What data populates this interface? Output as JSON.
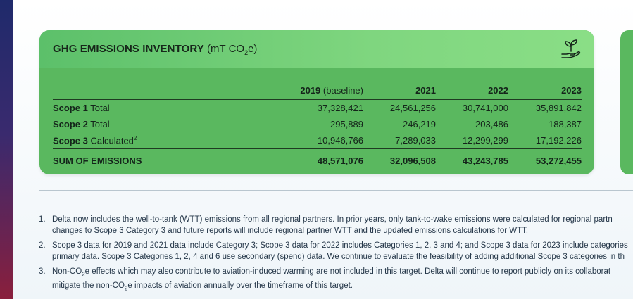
{
  "card": {
    "title_bold": "GHG EMISSIONS INVENTORY",
    "title_unit_prefix": "(mT CO",
    "title_unit_sub": "2",
    "title_unit_suffix": "e)",
    "icon": "plant-in-hand-icon"
  },
  "table": {
    "headers": [
      {
        "year": "2019",
        "note": "(baseline)"
      },
      {
        "year": "2021",
        "note": ""
      },
      {
        "year": "2022",
        "note": ""
      },
      {
        "year": "2023",
        "note": ""
      }
    ],
    "rows": [
      {
        "label_bold": "Scope 1",
        "label_rest": " Total",
        "sup": "",
        "values": [
          "37,328,421",
          "24,561,256",
          "30,741,000",
          "35,891,842"
        ]
      },
      {
        "label_bold": "Scope 2",
        "label_rest": " Total",
        "sup": "",
        "values": [
          "295,889",
          "246,219",
          "203,486",
          "188,387"
        ]
      },
      {
        "label_bold": "Scope 3",
        "label_rest": " Calculated",
        "sup": "2",
        "values": [
          "10,946,766",
          "7,289,033",
          "12,299,299",
          "17,192,226"
        ]
      }
    ],
    "sum": {
      "label": "SUM OF EMISSIONS",
      "values": [
        "48,571,076",
        "32,096,508",
        "43,243,785",
        "53,272,455"
      ]
    }
  },
  "notes": [
    {
      "num": "1.",
      "line1": "Delta now includes the well-to-tank (WTT) emissions from all regional partners. In prior years, only tank-to-wake emissions were calculated for regional partn",
      "line2": "changes to Scope 3 Category 3 and future reports will include regional partner WTT and the updated emissions calculations for WTT."
    },
    {
      "num": "2.",
      "line1": "Scope 3 data for 2019 and 2021 data include Category 3; Scope 3 data for 2022 includes Categories 1, 2, 3 and 4; and Scope 3 data for 2023 include categories",
      "line2": "primary data. Scope 3 Categories 1, 2, 4 and 6 use secondary (spend) data. We continue to evaluate the feasibility of adding additional Scope 3 categories in th"
    },
    {
      "num": "3.",
      "line1_a": "Non-CO",
      "line1_sub": "2",
      "line1_b": "e effects which may also contribute to aviation-induced warming are not included in this target. Delta will continue to report publicly on its collaborat",
      "line2_a": "mitigate the non-CO",
      "line2_sub": "2",
      "line2_b": "e impacts of aviation annually over the timeframe of this target."
    }
  ],
  "colors": {
    "card_green": "#5ab85f",
    "header_green_light": "#8ade86",
    "side_strip": "#3a2a6e"
  }
}
